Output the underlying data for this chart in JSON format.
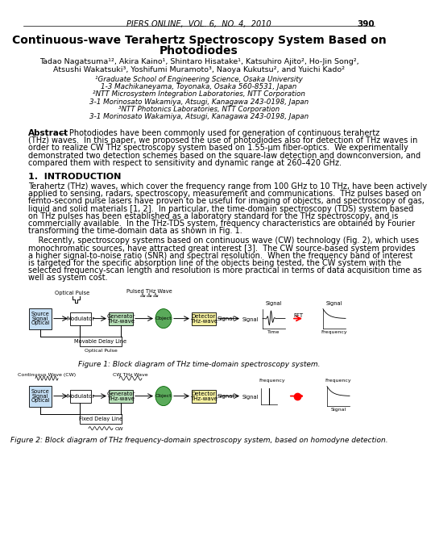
{
  "header": "PIERS ONLINE,  VOL. 6,  NO. 4,  2010",
  "page_num": "390",
  "title_line1": "Continuous-wave Terahertz Spectroscopy System Based on",
  "title_line2": "Photodiodes",
  "author_line1": "Tadao Nagatsuma¹², Akira Kaino¹, Shintaro Hisatake¹, Katsuhiro Ajito², Ho-Jin Song²,",
  "author_line2": "Atsushi Wakatsuki³, Yoshifumi Muramoto³, Naoya Kukutsu², and Yuichi Kado²",
  "affiliations": [
    "¹Graduate School of Engineering Science, Osaka University",
    "1-3 Machikaneyama, Toyonaka, Osaka 560-8531, Japan",
    "²NTT Microsystem Integration Laboratories, NTT Corporation",
    "3-1 Morinosato Wakamiya, Atsugi, Kanagawa 243-0198, Japan",
    "³NTT Photonics Laboratories, NTT Corporation",
    "3-1 Morinosato Wakamiya, Atsugi, Kanagawa 243-0198, Japan"
  ],
  "abstract_lines": [
    "— Photodiodes have been commonly used for generation of continuous terahertz",
    "(THz) waves.  In this paper, we proposed the use of photodiodes also for detection of THz waves in",
    "order to realize CW THz spectroscopy system based on 1.55-μm fiber-optics.  We experimentally",
    "demonstrated two detection schemes based on the square-law detection and downconversion, and",
    "compared them with respect to sensitivity and dynamic range at 260–420 GHz."
  ],
  "section1_title": "1.  INTRODUCTION",
  "intro1_lines": [
    "Terahertz (THz) waves, which cover the frequency range from 100 GHz to 10 THz, have been actively",
    "applied to sensing, radars, spectroscopy, measurement and communications.  THz pulses based on",
    "femto-second pulse lasers have proven to be useful for imaging of objects, and spectroscopy of gas,",
    "liquid and solid materials [1, 2].  In particular, the time-domain spectroscopy (TDS) system based",
    "on THz pulses has been established as a laboratory standard for the THz spectroscopy, and is",
    "commercially available.  In the THz-TDS system, frequency characteristics are obtained by Fourier",
    "transforming the time-domain data as shown in Fig. 1."
  ],
  "intro2_lines": [
    "    Recently, spectroscopy systems based on continuous wave (CW) technology (Fig. 2), which uses",
    "monochromatic sources, have attracted great interest [3].  The CW source-based system provides",
    "a higher signal-to-noise ratio (SNR) and spectral resolution.  When the frequency band of interest",
    "is targeted for the specific absorption line of the objects being tested, the CW system with the",
    "selected frequency-scan length and resolution is more practical in terms of data acquisition time as",
    "well as system cost."
  ],
  "fig1_caption": "Figure 1: Block diagram of THz time-domain spectroscopy system.",
  "fig2_caption": "Figure 2: Block diagram of THz frequency-domain spectroscopy system, based on homodyne detection.",
  "bg_color": "#ffffff",
  "box_blue": "#c5dff5",
  "box_green": "#b8e0b8",
  "box_yellow": "#f5f0a0",
  "obj_green": "#5aaa5a"
}
